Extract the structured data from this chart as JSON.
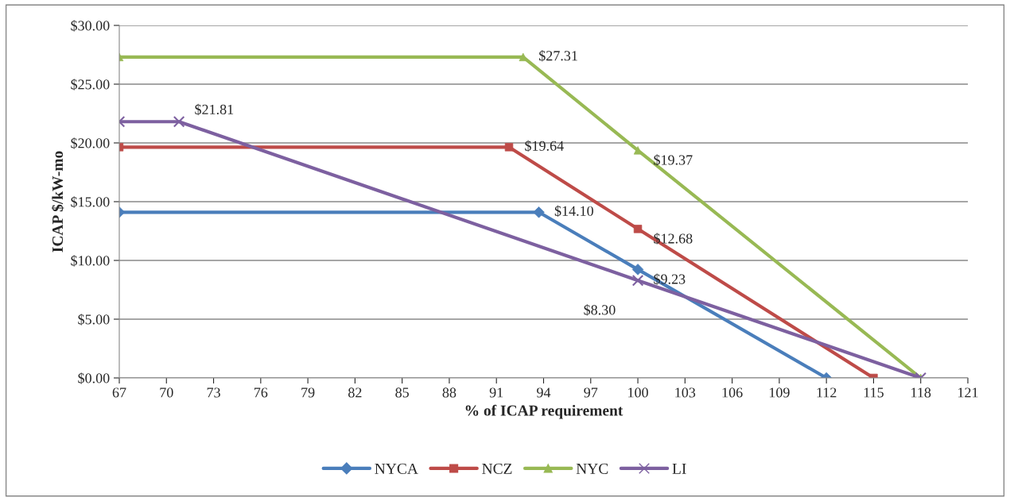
{
  "chart_data": {
    "type": "line",
    "xlabel": "% of ICAP requirement",
    "ylabel": "ICAP $/kW-mo",
    "xlim": [
      67,
      121
    ],
    "xticks": [
      67,
      70,
      73,
      76,
      79,
      82,
      85,
      88,
      91,
      94,
      97,
      100,
      103,
      106,
      109,
      112,
      115,
      118,
      121
    ],
    "ylim": [
      0,
      30
    ],
    "yticks": [
      {
        "value": 0,
        "label": "$0.00"
      },
      {
        "value": 5,
        "label": "$5.00"
      },
      {
        "value": 10,
        "label": "$10.00"
      },
      {
        "value": 15,
        "label": "$15.00"
      },
      {
        "value": 20,
        "label": "$20.00"
      },
      {
        "value": 25,
        "label": "$25.00"
      },
      {
        "value": 30,
        "label": "$30.00"
      }
    ],
    "grid": "y",
    "legend": "bottom",
    "series": [
      {
        "name": "NYCA",
        "color": "#4a7ebb",
        "marker": "diamond",
        "x": [
          67,
          93.7,
          100,
          112
        ],
        "values": [
          14.1,
          14.1,
          9.23,
          0
        ],
        "value_labels": [
          null,
          "$14.10",
          "$9.23",
          null
        ]
      },
      {
        "name": "NCZ",
        "color": "#be4b48",
        "marker": "square",
        "x": [
          67,
          91.8,
          100,
          115
        ],
        "values": [
          19.64,
          19.64,
          12.68,
          0
        ],
        "value_labels": [
          null,
          "$19.64",
          "$12.68",
          null
        ]
      },
      {
        "name": "NYC",
        "color": "#98b954",
        "marker": "triangle",
        "x": [
          67,
          92.7,
          100,
          118
        ],
        "values": [
          27.31,
          27.31,
          19.37,
          0
        ],
        "value_labels": [
          null,
          "$27.31",
          "$19.37",
          null
        ]
      },
      {
        "name": "LI",
        "color": "#7d60a0",
        "marker": "cross",
        "x": [
          67,
          70.8,
          100,
          118
        ],
        "values": [
          21.81,
          21.81,
          8.3,
          0
        ],
        "value_labels": [
          null,
          "$21.81",
          "$8.30",
          null
        ]
      }
    ]
  }
}
